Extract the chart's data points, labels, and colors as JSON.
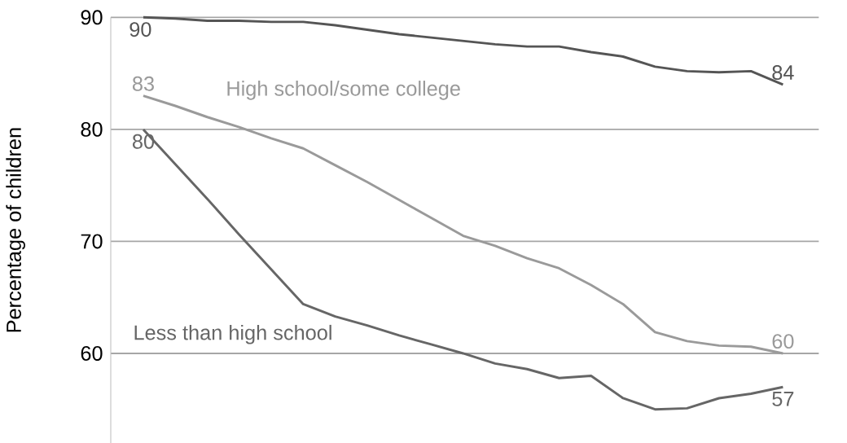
{
  "chart_data": {
    "type": "line",
    "ylabel": "Percentage of children",
    "categories": [
      null,
      null,
      null,
      null,
      null,
      null,
      null,
      null,
      null,
      null,
      null,
      null,
      null,
      null,
      null,
      null,
      null,
      null,
      null,
      null,
      null
    ],
    "series": [
      {
        "color": "#555555",
        "values": [
          90,
          89.9,
          89.7,
          89.7,
          89.6,
          89.6,
          89.3,
          88.9,
          88.5,
          88.2,
          87.9,
          87.6,
          87.4,
          87.4,
          86.9,
          86.5,
          85.6,
          85.2,
          85.1,
          85.2,
          84
        ],
        "value_labels": [
          "90",
          null,
          null,
          null,
          null,
          null,
          null,
          null,
          null,
          null,
          null,
          null,
          null,
          null,
          null,
          null,
          null,
          null,
          null,
          null,
          "84"
        ]
      },
      {
        "name": "High school/some college",
        "color": "#9a9a9a",
        "values": [
          83,
          82.1,
          81.1,
          80.2,
          79.2,
          78.3,
          76.8,
          75.3,
          73.7,
          72.1,
          70.5,
          69.6,
          68.5,
          67.6,
          66.1,
          64.4,
          61.9,
          61.1,
          60.7,
          60.6,
          60
        ],
        "value_labels": [
          "83",
          null,
          null,
          null,
          null,
          null,
          null,
          null,
          null,
          null,
          null,
          null,
          null,
          null,
          null,
          null,
          null,
          null,
          null,
          null,
          "60"
        ]
      },
      {
        "name": "Less than high school",
        "color": "#666666",
        "values": [
          80,
          76.9,
          73.8,
          70.6,
          67.5,
          64.4,
          63.3,
          62.5,
          61.6,
          60.8,
          60.0,
          59.1,
          58.6,
          57.8,
          58.0,
          56.0,
          55.0,
          55.1,
          56.0,
          56.4,
          57
        ],
        "value_labels": [
          "80",
          null,
          null,
          null,
          null,
          null,
          null,
          null,
          null,
          null,
          null,
          null,
          null,
          null,
          null,
          null,
          null,
          null,
          null,
          null,
          "57"
        ]
      }
    ],
    "ylim": [
      52,
      90
    ],
    "yticks": [
      60,
      70,
      80,
      90
    ],
    "grid": "y",
    "marker": "none",
    "line_style": "solid"
  }
}
